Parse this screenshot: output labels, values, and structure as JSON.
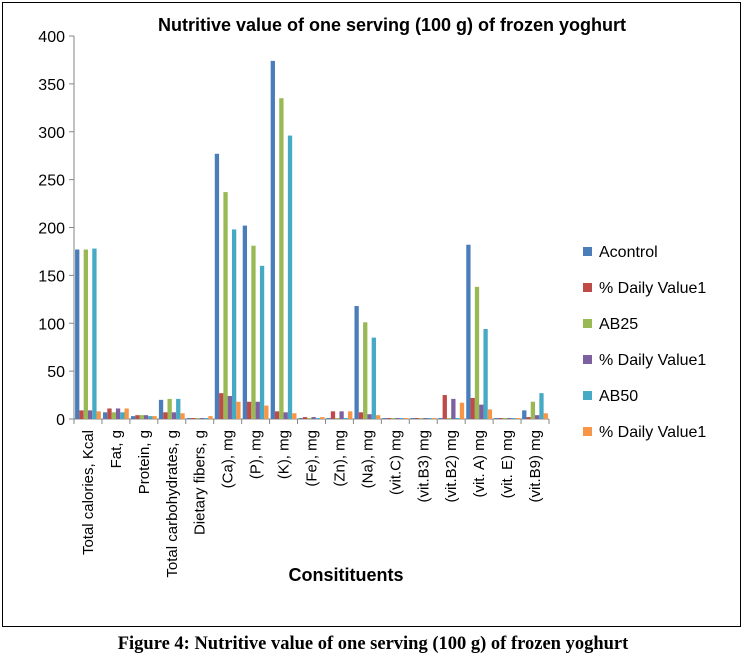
{
  "caption": "Figure 4: Nutritive value of one serving (100 g) of frozen yoghurt",
  "chart_data": {
    "type": "bar",
    "title": "Nutritive value of one serving (100 g) of frozen yoghurt",
    "xlabel": "Consitituents",
    "ylabel": "",
    "ylim": [
      0,
      400
    ],
    "yticks": [
      0,
      50,
      100,
      150,
      200,
      250,
      300,
      350,
      400
    ],
    "grid": false,
    "legend_position": "right",
    "categories": [
      "Total calories, Kcal",
      "Fat, g",
      "Protein, g",
      "Total carbohydrates, g",
      "Dietary fibers, g",
      "(Ca), mg",
      "(P), mg",
      "(K), mg",
      "(Fe), mg",
      "(Zn), mg",
      "(Na), mg",
      "(vit.C) mg",
      "(vit.B3) mg",
      "(vit.B2) mg",
      "(vit. A) mg",
      "(vit. E) mg",
      "(vit.B9) mg"
    ],
    "series": [
      {
        "name": "Acontrol",
        "color": "#4a7ebb",
        "values": [
          177,
          7,
          3,
          20,
          1,
          277,
          202,
          374,
          1,
          1,
          118,
          1,
          1,
          1,
          182,
          1,
          9
        ]
      },
      {
        "name": "% Daily Value1",
        "color": "#be4b48",
        "values": [
          9,
          11,
          4,
          7,
          1,
          27,
          18,
          8,
          2,
          8,
          7,
          1,
          1,
          25,
          22,
          1,
          2
        ]
      },
      {
        "name": "AB25",
        "color": "#98b954",
        "values": [
          177,
          7,
          4,
          21,
          1,
          237,
          181,
          335,
          1,
          1,
          101,
          1,
          1,
          1,
          138,
          1,
          18
        ]
      },
      {
        "name": "% Daily Value1",
        "color": "#7d60a0",
        "values": [
          9,
          11,
          4,
          7,
          1,
          24,
          18,
          7,
          2,
          8,
          5,
          1,
          1,
          21,
          15,
          1,
          4
        ]
      },
      {
        "name": "AB50",
        "color": "#46aac5",
        "values": [
          178,
          7,
          3,
          21,
          1,
          198,
          160,
          296,
          1,
          1,
          85,
          1,
          1,
          1,
          94,
          1,
          27
        ]
      },
      {
        "name": "% Daily Value1",
        "color": "#f79646",
        "values": [
          8,
          11,
          3,
          6,
          3,
          18,
          14,
          6,
          2,
          8,
          4,
          1,
          1,
          17,
          10,
          1,
          6
        ]
      }
    ]
  }
}
